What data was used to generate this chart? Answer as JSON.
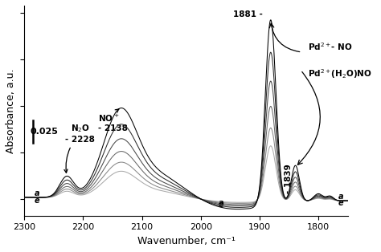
{
  "xmin": 2300,
  "xmax": 1750,
  "xlabel": "Wavenumber, cm⁻¹",
  "ylabel": "Absorbance, a.u.",
  "scale_bar_value": "0.025",
  "curve_colors": [
    "#000000",
    "#2a2a2a",
    "#484848",
    "#686868",
    "#888888",
    "#aaaaaa"
  ],
  "n_curves": 6,
  "background_color": "#ffffff",
  "scales": [
    1.0,
    0.82,
    0.66,
    0.52,
    0.4,
    0.3
  ]
}
